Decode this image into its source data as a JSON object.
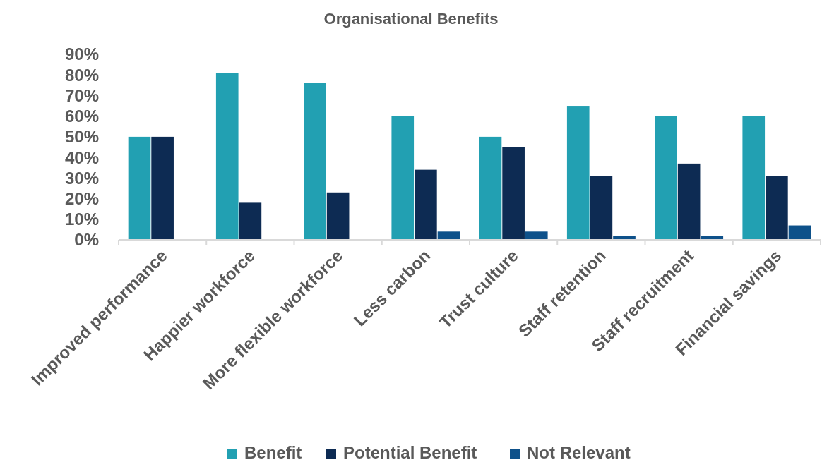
{
  "chart_data": {
    "type": "bar",
    "title": "Organisational Benefits",
    "categories": [
      "Improved performance",
      "Happier workforce",
      "More flexible workforce",
      "Less carbon",
      "Trust culture",
      "Staff retention",
      "Staff recruitment",
      "Financial savings"
    ],
    "series": [
      {
        "name": "Benefit",
        "color": "#22a0b2",
        "values": [
          50,
          81,
          76,
          60,
          50,
          65,
          60,
          60
        ]
      },
      {
        "name": "Potential Benefit",
        "color": "#0d2b53",
        "values": [
          50,
          18,
          23,
          34,
          45,
          31,
          37,
          31
        ]
      },
      {
        "name": "Not Relevant",
        "color": "#0e518a",
        "values": [
          0,
          0,
          0,
          4,
          4,
          2,
          2,
          7
        ]
      }
    ],
    "ylim": [
      0,
      90
    ],
    "yticks": [
      {
        "value": 0,
        "label": "0%"
      },
      {
        "value": 10,
        "label": "10%"
      },
      {
        "value": 20,
        "label": "20%"
      },
      {
        "value": 30,
        "label": "30%"
      },
      {
        "value": 40,
        "label": "40%"
      },
      {
        "value": 50,
        "label": "50%"
      },
      {
        "value": 60,
        "label": "60%"
      },
      {
        "value": 70,
        "label": "70%"
      },
      {
        "value": 80,
        "label": "80%"
      },
      {
        "value": 90,
        "label": "90%"
      }
    ],
    "grid": false,
    "legend": "bottom"
  }
}
